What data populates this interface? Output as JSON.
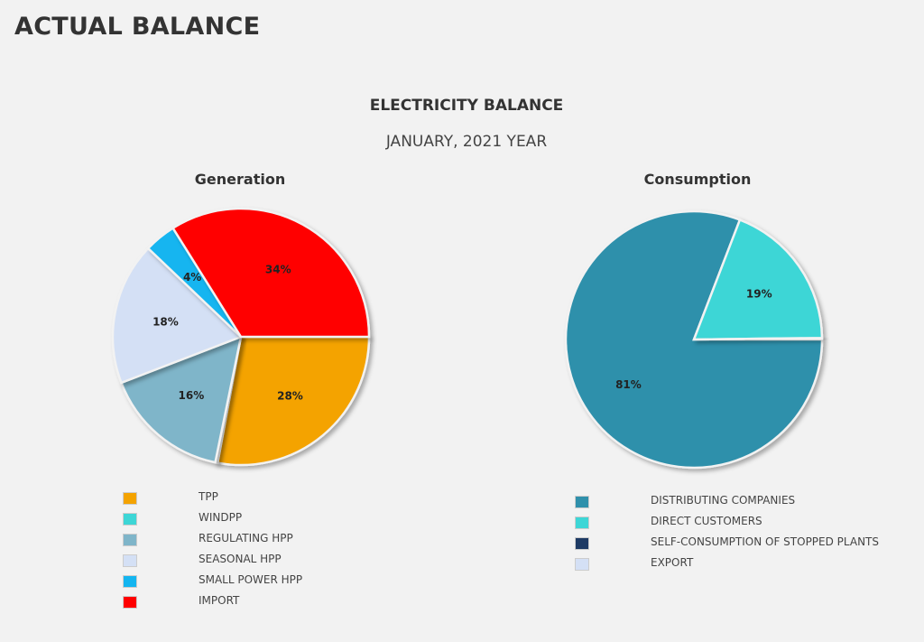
{
  "page_title": "ACTUAL BALANCE",
  "balance_title": "ELECTRICITY BALANCE",
  "balance_subtitle": "JANUARY, 2021 YEAR",
  "chart_data": [
    {
      "type": "pie",
      "title": "Generation",
      "slices": [
        {
          "label": "TPP",
          "value": 28,
          "color": "#f4a300",
          "data_label": "28%"
        },
        {
          "label": "WINDPP",
          "value": 0.3,
          "color": "#3dd6d6",
          "data_label": ""
        },
        {
          "label": "REGULATING HPP",
          "value": 16,
          "color": "#7fb5c9",
          "data_label": "16%"
        },
        {
          "label": "SEASONAL HPP",
          "value": 18,
          "color": "#d4e0f5",
          "data_label": "18%"
        },
        {
          "label": "SMALL POWER HPP",
          "value": 4,
          "color": "#13b5f0",
          "data_label": "4%"
        },
        {
          "label": "IMPORT",
          "value": 34,
          "color": "#ff0000",
          "data_label": "34%"
        }
      ]
    },
    {
      "type": "pie",
      "title": "Consumption",
      "slices": [
        {
          "label": "DISTRIBUTING COMPANIES",
          "value": 81,
          "color": "#2f90ab",
          "data_label": "81%"
        },
        {
          "label": "DIRECT CUSTOMERS",
          "value": 19,
          "color": "#3dd6d6",
          "data_label": "19%"
        },
        {
          "label": "SELF-CONSUMPTION OF STOPPED PLANTS",
          "value": 0.2,
          "color": "#1d3a64",
          "data_label": ""
        },
        {
          "label": "EXPORT",
          "value": 0,
          "color": "#d4e0f5",
          "data_label": ""
        }
      ]
    }
  ]
}
